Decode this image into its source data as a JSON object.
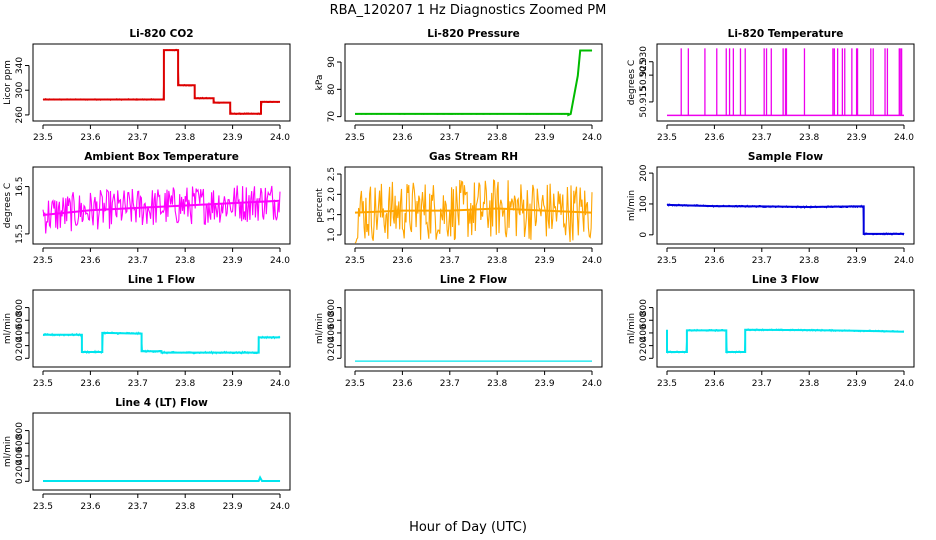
{
  "main_title": "RBA_120207  1 Hz Diagnostics Zoomed PM",
  "x_axis_label": "Hour of Day (UTC)",
  "chart_data": [
    {
      "type": "line",
      "title": "Li-820 CO2",
      "ylabel": "Licor ppm",
      "color": "#dd0000",
      "xlim": [
        23.5,
        24.0
      ],
      "ylim": [
        255,
        370
      ],
      "xticks": [
        "23.5",
        "23.6",
        "23.7",
        "23.8",
        "23.9",
        "24.0"
      ],
      "yticks": [
        260,
        300,
        340
      ],
      "ytick_labels": [
        "260",
        "300",
        "340"
      ],
      "noise": 1.2,
      "series": [
        {
          "name": "CO2",
          "x": [
            23.5,
            23.755,
            23.755,
            23.785,
            23.785,
            23.82,
            23.82,
            23.86,
            23.86,
            23.895,
            23.895,
            23.94,
            23.94,
            23.96,
            23.96,
            24.0
          ],
          "y": [
            285,
            285,
            365,
            365,
            308,
            308,
            287,
            287,
            280,
            280,
            262,
            262,
            262,
            262,
            281,
            281
          ]
        }
      ]
    },
    {
      "type": "line",
      "title": "Li-820 Pressure",
      "ylabel": "kPa",
      "color": "#00bb00",
      "xlim": [
        23.5,
        24.0
      ],
      "ylim": [
        69.5,
        95.5
      ],
      "xticks": [
        "23.5",
        "23.6",
        "23.7",
        "23.8",
        "23.9",
        "24.0"
      ],
      "yticks": [
        70,
        80,
        90
      ],
      "ytick_labels": [
        "70",
        "80",
        "90"
      ],
      "noise": 0.12,
      "series": [
        {
          "name": "Pressure",
          "x": [
            23.5,
            23.95,
            23.95,
            23.955,
            23.97,
            23.975,
            23.98,
            24.0
          ],
          "y": [
            71,
            71,
            70.6,
            71,
            85,
            94.2,
            94.2,
            94.2
          ]
        }
      ]
    },
    {
      "type": "spikes",
      "title": "Li-820 Temperature",
      "ylabel": "degrees C",
      "color": "#ee00ee",
      "xlim": [
        23.5,
        24.0
      ],
      "ylim": [
        50.909,
        50.9355
      ],
      "xticks": [
        "23.5",
        "23.6",
        "23.7",
        "23.8",
        "23.9",
        "24.0"
      ],
      "yticks": [
        50.915,
        50.925,
        50.93
      ],
      "ytick_labels": [
        "50.915",
        "50.925",
        "50.930"
      ],
      "baseline": 50.91,
      "spike_level": 50.935,
      "spikes": [
        23.53,
        23.545,
        23.58,
        23.605,
        23.625,
        23.632,
        23.64,
        23.655,
        23.665,
        23.705,
        23.71,
        23.72,
        23.745,
        23.75,
        23.752,
        23.79,
        23.85,
        23.853,
        23.86,
        23.87,
        23.875,
        23.89,
        23.9,
        23.902,
        23.93,
        23.935,
        23.96,
        23.965,
        23.99,
        23.992,
        23.995
      ]
    },
    {
      "type": "line",
      "title": "Ambient Box Temperature",
      "ylabel": "degrees C",
      "color": "#ff00ff",
      "xlim": [
        23.5,
        24.0
      ],
      "ylim": [
        15.35,
        16.85
      ],
      "xticks": [
        "23.5",
        "23.6",
        "23.7",
        "23.8",
        "23.9",
        "24.0"
      ],
      "yticks": [
        15.5,
        16.5
      ],
      "ytick_labels": [
        "15.5",
        "16.5"
      ],
      "noise": 0.42,
      "series": [
        {
          "name": "Box temperature",
          "x": [
            23.5,
            23.6,
            23.7,
            23.8,
            23.9,
            24.0
          ],
          "y": [
            15.9,
            16.0,
            16.05,
            16.1,
            16.15,
            16.2
          ]
        }
      ]
    },
    {
      "type": "line",
      "title": "Gas Stream RH",
      "ylabel": "percent",
      "color": "#ffa500",
      "xlim": [
        23.5,
        24.0
      ],
      "ylim": [
        0.85,
        2.6
      ],
      "xticks": [
        "23.5",
        "23.6",
        "23.7",
        "23.8",
        "23.9",
        "24.0"
      ],
      "yticks": [
        1.0,
        1.5,
        2.0,
        2.5
      ],
      "ytick_labels": [
        "1.0",
        "1.5",
        "2.0",
        "2.5"
      ],
      "noise": 0.75,
      "series": [
        {
          "name": "RH",
          "x": [
            23.5,
            23.6,
            23.7,
            23.8,
            23.9,
            24.0
          ],
          "y": [
            1.55,
            1.6,
            1.6,
            1.65,
            1.6,
            1.55
          ]
        }
      ]
    },
    {
      "type": "line",
      "title": "Sample Flow",
      "ylabel": "ml/min",
      "color": "#0000dd",
      "xlim": [
        23.5,
        24.0
      ],
      "ylim": [
        -20,
        210
      ],
      "xticks": [
        "23.5",
        "23.6",
        "23.7",
        "23.8",
        "23.9",
        "24.0"
      ],
      "yticks": [
        0,
        100,
        200
      ],
      "ytick_labels": [
        "0",
        "100",
        "200"
      ],
      "noise": 3,
      "series": [
        {
          "name": "Sample flow",
          "x": [
            23.5,
            23.6,
            23.7,
            23.8,
            23.9,
            23.915,
            23.915,
            24.0
          ],
          "y": [
            97,
            93,
            92,
            90,
            92,
            92,
            3,
            3
          ]
        }
      ]
    },
    {
      "type": "line",
      "title": "Line 1 Flow",
      "ylabel": "ml/min",
      "color": "#00e5ee",
      "xlim": [
        23.5,
        24.0
      ],
      "ylim": [
        -90,
        1030
      ],
      "xticks": [
        "23.5",
        "23.6",
        "23.7",
        "23.8",
        "23.9",
        "24.0"
      ],
      "yticks": [
        0,
        200,
        400,
        600,
        800
      ],
      "ytick_labels": [
        "0",
        "200",
        "400",
        "600",
        "800"
      ],
      "noise": 18,
      "series": [
        {
          "name": "Line 1",
          "x": [
            23.5,
            23.582,
            23.582,
            23.625,
            23.625,
            23.708,
            23.708,
            23.75,
            23.75,
            23.955,
            23.955,
            24.0
          ],
          "y": [
            370,
            370,
            100,
            100,
            400,
            390,
            110,
            110,
            90,
            90,
            330,
            330
          ]
        }
      ]
    },
    {
      "type": "line",
      "title": "Line 2 Flow",
      "ylabel": "ml/min",
      "color": "#00e5ee",
      "xlim": [
        23.5,
        24.0
      ],
      "ylim": [
        -90,
        1030
      ],
      "xticks": [
        "23.5",
        "23.6",
        "23.7",
        "23.8",
        "23.9",
        "24.0"
      ],
      "yticks": [
        0,
        200,
        400,
        600,
        800
      ],
      "ytick_labels": [
        "0",
        "200",
        "400",
        "600",
        "800"
      ],
      "noise": 0,
      "series": [
        {
          "name": "Line 2",
          "x": [
            23.5,
            24.0
          ],
          "y": [
            -45,
            -45
          ]
        }
      ]
    },
    {
      "type": "line",
      "title": "Line 3 Flow",
      "ylabel": "ml/min",
      "color": "#00e5ee",
      "xlim": [
        23.5,
        24.0
      ],
      "ylim": [
        -90,
        1030
      ],
      "xticks": [
        "23.5",
        "23.6",
        "23.7",
        "23.8",
        "23.9",
        "24.0"
      ],
      "yticks": [
        0,
        200,
        400,
        600,
        800
      ],
      "ytick_labels": [
        "0",
        "200",
        "400",
        "600",
        "800"
      ],
      "noise": 14,
      "series": [
        {
          "name": "Line 3",
          "x": [
            23.5,
            23.5,
            23.5,
            23.542,
            23.542,
            23.625,
            23.625,
            23.665,
            23.665,
            23.8,
            23.9,
            24.0
          ],
          "y": [
            200,
            450,
            100,
            100,
            440,
            440,
            100,
            100,
            450,
            445,
            435,
            420
          ]
        }
      ]
    },
    {
      "type": "line",
      "title": "Line 4 (LT) Flow",
      "ylabel": "ml/min",
      "color": "#00e5ee",
      "xlim": [
        23.5,
        24.0
      ],
      "ylim": [
        -90,
        1030
      ],
      "xticks": [
        "23.5",
        "23.6",
        "23.7",
        "23.8",
        "23.9",
        "24.0"
      ],
      "yticks": [
        0,
        200,
        400,
        600,
        800
      ],
      "ytick_labels": [
        "0",
        "200",
        "400",
        "600",
        "800"
      ],
      "noise": 6,
      "series": [
        {
          "name": "Line 4",
          "x": [
            23.5,
            23.955,
            23.958,
            23.962,
            24.0
          ],
          "y": [
            5,
            5,
            60,
            5,
            5
          ]
        }
      ]
    }
  ]
}
